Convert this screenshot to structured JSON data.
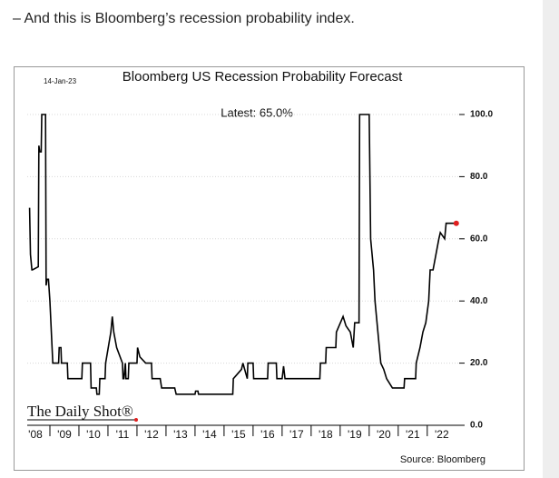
{
  "intro": "– And this is Bloomberg’s recession probability index.",
  "chart_data": {
    "type": "line",
    "title": "Bloomberg US Recession Probability Forecast",
    "date": "14-Jan-23",
    "annotation": "Latest:  65.0%",
    "branding": "The Daily Shot®",
    "source": "Source: Bloomberg",
    "xlim": [
      2008,
      2023.1
    ],
    "xticks": [
      {
        "value": 2008,
        "label": "'08"
      },
      {
        "value": 2009,
        "label": "'09"
      },
      {
        "value": 2010,
        "label": "'10"
      },
      {
        "value": 2011,
        "label": "'11"
      },
      {
        "value": 2012,
        "label": "'12"
      },
      {
        "value": 2013,
        "label": "'13"
      },
      {
        "value": 2014,
        "label": "'14"
      },
      {
        "value": 2015,
        "label": "'15"
      },
      {
        "value": 2016,
        "label": "'16"
      },
      {
        "value": 2017,
        "label": "'17"
      },
      {
        "value": 2018,
        "label": "'18"
      },
      {
        "value": 2019,
        "label": "'19"
      },
      {
        "value": 2020,
        "label": "'20"
      },
      {
        "value": 2021,
        "label": "'21"
      },
      {
        "value": 2022,
        "label": "'22"
      }
    ],
    "ylim": [
      0,
      100
    ],
    "yticks": [
      {
        "value": 0,
        "label": "0.0"
      },
      {
        "value": 20,
        "label": "20.0"
      },
      {
        "value": 40,
        "label": "40.0"
      },
      {
        "value": 60,
        "label": "60.0"
      },
      {
        "value": 80,
        "label": "80.0"
      },
      {
        "value": 100,
        "label": "100.0"
      }
    ],
    "grid": true,
    "marker_color": "#e02020",
    "series": [
      {
        "name": "Recession probability",
        "color": "#000000",
        "x": [
          2008.3,
          2008.33,
          2008.38,
          2008.4,
          2008.6,
          2008.62,
          2008.65,
          2008.7,
          2008.72,
          2008.75,
          2008.85,
          2008.87,
          2008.9,
          2008.95,
          2009.0,
          2009.1,
          2009.3,
          2009.32,
          2009.38,
          2009.4,
          2009.6,
          2009.62,
          2010.1,
          2010.12,
          2010.4,
          2010.42,
          2010.6,
          2010.62,
          2010.7,
          2010.72,
          2010.9,
          2010.92,
          2011.1,
          2011.15,
          2011.2,
          2011.3,
          2011.5,
          2011.52,
          2011.55,
          2011.6,
          2011.62,
          2011.7,
          2011.72,
          2011.8,
          2011.82,
          2012.0,
          2012.02,
          2012.1,
          2012.3,
          2012.5,
          2012.52,
          2012.8,
          2012.85,
          2013.3,
          2013.35,
          2014.0,
          2014.02,
          2014.1,
          2014.12,
          2015.3,
          2015.32,
          2015.6,
          2015.65,
          2015.8,
          2015.82,
          2015.85,
          2016.0,
          2016.02,
          2016.5,
          2016.52,
          2016.8,
          2016.82,
          2017.0,
          2017.05,
          2017.1,
          2018.3,
          2018.32,
          2018.5,
          2018.52,
          2018.85,
          2018.87,
          2019.1,
          2019.2,
          2019.35,
          2019.45,
          2019.5,
          2019.6,
          2019.65,
          2019.67,
          2020.0,
          2020.05,
          2020.15,
          2020.2,
          2020.3,
          2020.4,
          2020.5,
          2020.6,
          2020.8,
          2020.82,
          2021.2,
          2021.22,
          2021.6,
          2021.62,
          2021.75,
          2021.85,
          2021.95,
          2022.05,
          2022.1,
          2022.2,
          2022.4,
          2022.45,
          2022.6,
          2022.65,
          2022.7,
          2023.0
        ],
        "values": [
          70,
          55,
          50,
          50,
          51,
          90,
          88,
          88,
          100,
          100,
          100,
          45,
          47,
          47,
          40,
          20,
          20,
          25,
          25,
          20,
          20,
          15,
          15,
          20,
          20,
          12,
          12,
          10,
          10,
          15,
          15,
          20,
          30,
          35,
          30,
          25,
          20,
          15,
          15,
          20,
          15,
          15,
          20,
          20,
          20,
          20,
          25,
          22,
          20,
          20,
          15,
          15,
          12,
          12,
          10,
          10,
          11,
          11,
          10,
          10,
          15,
          18,
          20,
          15,
          20,
          20,
          20,
          15,
          15,
          20,
          20,
          15,
          15,
          19,
          15,
          15,
          20,
          20,
          25,
          25,
          30,
          35,
          32,
          30,
          25,
          33,
          33,
          33,
          100,
          100,
          60,
          50,
          40,
          30,
          20,
          18,
          15,
          12,
          12,
          12,
          15,
          15,
          20,
          25,
          30,
          33,
          40,
          50,
          50,
          60,
          62,
          60,
          65,
          65,
          65
        ]
      }
    ]
  }
}
